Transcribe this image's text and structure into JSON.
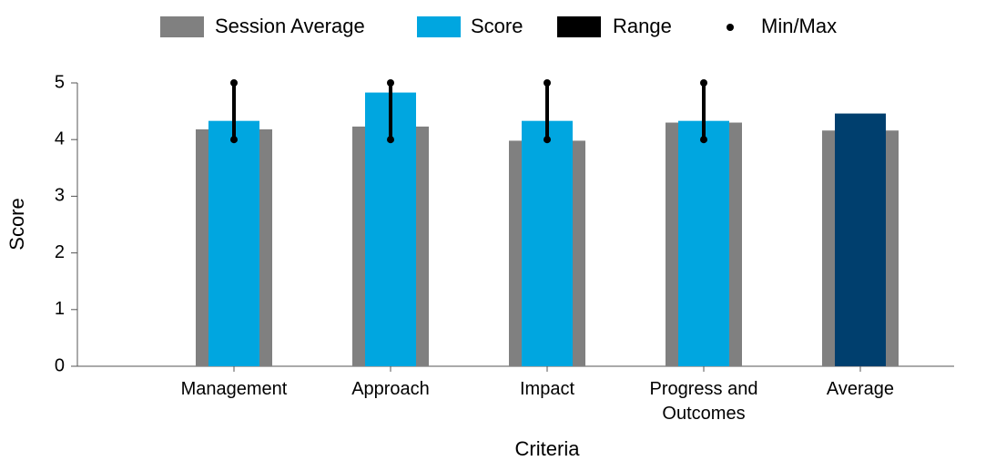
{
  "chart_data": {
    "type": "bar",
    "categories": [
      "Management",
      "Approach",
      "Impact",
      "Progress and Outcomes",
      "Average"
    ],
    "xlabel": "Criteria",
    "ylabel": "Score",
    "ylim": [
      0,
      5
    ],
    "yticks": [
      0,
      1,
      2,
      3,
      4,
      5
    ],
    "series": [
      {
        "name": "Session Average",
        "color": "#808080",
        "values": [
          4.18,
          4.23,
          3.98,
          4.3,
          4.16
        ]
      },
      {
        "name": "Score",
        "color": "#00a6e0",
        "colors": [
          "#00a6e0",
          "#00a6e0",
          "#00a6e0",
          "#00a6e0",
          "#003f6e"
        ],
        "values": [
          4.33,
          4.83,
          4.33,
          4.33,
          4.46
        ]
      },
      {
        "name": "Range",
        "color": "#000000",
        "min": [
          4,
          4,
          4,
          4,
          null
        ],
        "max": [
          5,
          5,
          5,
          5,
          null
        ]
      },
      {
        "name": "Min/Max",
        "color": "#000000"
      }
    ]
  }
}
